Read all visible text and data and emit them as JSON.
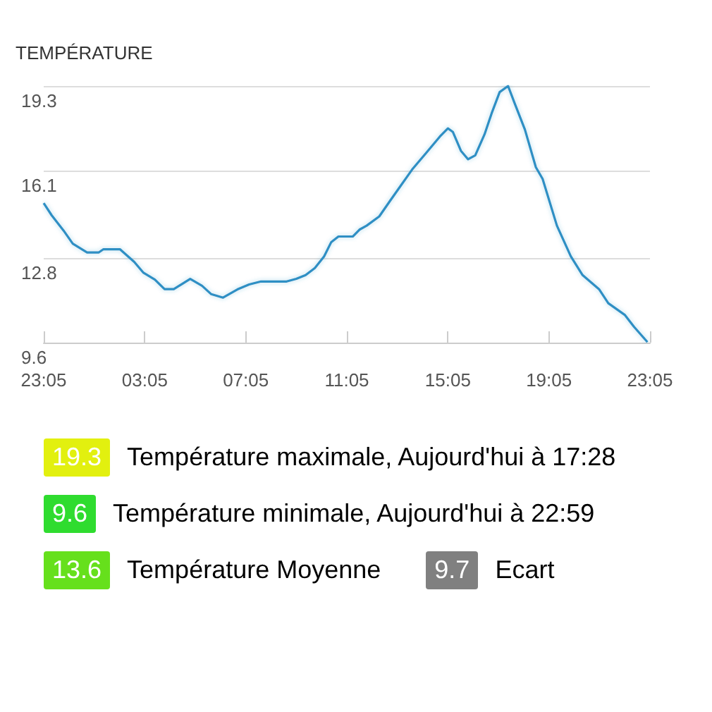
{
  "chart_data": {
    "type": "line",
    "title": "TEMPÉRATURE",
    "x": [
      "--01-01T23:05",
      "--01-01T23:24",
      "--01-01T23:52",
      "--01-02T00:14",
      "--01-02T00:48",
      "--01-02T01:16",
      "--01-02T01:27",
      "--01-02T02:06",
      "--01-02T02:40",
      "--01-02T03:02",
      "--01-02T03:29",
      "--01-02T03:52",
      "--01-02T04:14",
      "--01-02T04:53",
      "--01-02T05:21",
      "--01-02T05:43",
      "--01-02T06:11",
      "--01-02T06:45",
      "--01-02T07:13",
      "--01-02T07:41",
      "--01-02T08:42",
      "--01-02T09:05",
      "--01-02T09:27",
      "--01-02T09:49",
      "--01-02T10:11",
      "--01-02T10:28",
      "--01-02T10:45",
      "--01-02T11:19",
      "--01-02T11:35",
      "--01-02T11:52",
      "--01-02T12:22",
      "--01-02T12:49",
      "--01-02T13:40",
      "--01-02T14:13",
      "--01-02T14:46",
      "--01-02T15:05",
      "--01-02T15:17",
      "--01-02T15:36",
      "--01-02T15:53",
      "--01-02T16:10",
      "--01-02T16:32",
      "--01-02T16:49",
      "--01-02T17:08",
      "--01-02T17:28",
      "--01-02T17:44",
      "--01-02T18:08",
      "--01-02T18:34",
      "--01-02T18:50",
      "--01-02T19:24",
      "--01-02T19:57",
      "--01-02T20:25",
      "--01-02T21:04",
      "--01-02T21:26",
      "--01-02T22:05",
      "--01-02T22:27",
      "--01-02T22:59"
    ],
    "series": [
      {
        "color": "#2e8fc4",
        "values": [
          14.87,
          14.41,
          13.84,
          13.34,
          13.01,
          13.01,
          13.13,
          13.13,
          12.65,
          12.24,
          11.98,
          11.62,
          11.62,
          12.01,
          11.75,
          11.43,
          11.3,
          11.61,
          11.8,
          11.91,
          11.91,
          12.01,
          12.15,
          12.42,
          12.86,
          13.4,
          13.61,
          13.61,
          13.87,
          14.02,
          14.37,
          14.99,
          16.14,
          16.76,
          17.39,
          17.7,
          17.56,
          16.85,
          16.53,
          16.68,
          17.47,
          18.27,
          19.07,
          19.3,
          18.63,
          17.65,
          16.23,
          15.79,
          14.02,
          12.86,
          12.15,
          11.62,
          11.09,
          10.65,
          10.2,
          9.62
        ]
      }
    ],
    "xlim": [
      "--01-01T23:05",
      "--01-02T23:05"
    ],
    "xticks": [
      {
        "value": "--01-01T23:05",
        "label": "23:05"
      },
      {
        "value": "--01-02T03:05",
        "label": "03:05"
      },
      {
        "value": "--01-02T07:05",
        "label": "07:05"
      },
      {
        "value": "--01-02T11:05",
        "label": "11:05"
      },
      {
        "value": "--01-02T15:05",
        "label": "15:05"
      },
      {
        "value": "--01-02T19:05",
        "label": "19:05"
      },
      {
        "value": "--01-02T23:05",
        "label": "23:05"
      }
    ],
    "ylim": [
      9.6,
      19.3
    ],
    "yticks": [
      9.6,
      12.8,
      16.1,
      19.3
    ],
    "grid": "y",
    "marker": "none",
    "line_style": "solid",
    "annotations": [
      "19.3",
      "Température maximale, Aujourd'hui à 17:28",
      "9.6",
      "Température minimale, Aujourd'hui à 22:59",
      "13.6",
      "Température Moyenne",
      "9.7",
      "Ecart"
    ]
  }
}
